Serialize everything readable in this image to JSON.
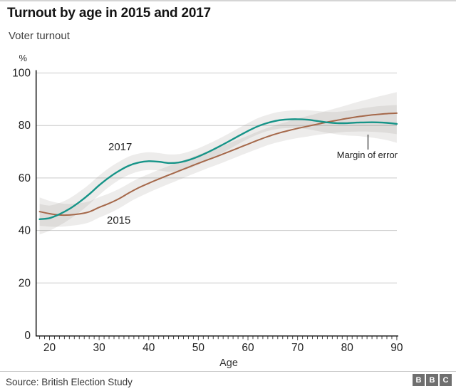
{
  "header": {
    "title": "Turnout by age in 2015 and 2017",
    "subtitle": "Voter turnout"
  },
  "chart_data": {
    "type": "line",
    "title": "Turnout by age in 2015 and 2017",
    "subtitle": "Voter turnout",
    "xlabel": "Age",
    "y_unit_label": "%",
    "xlim": [
      17.2,
      90.3
    ],
    "ylim": [
      0,
      100
    ],
    "x_ticks_labeled": [
      20,
      30,
      40,
      50,
      60,
      70,
      80,
      90
    ],
    "x_tick_minor_step": 1,
    "x_minor_range": [
      18,
      90
    ],
    "y_ticks": [
      0,
      20,
      40,
      60,
      80,
      100
    ],
    "grid": "horizontal",
    "legend_position": "inline-labels",
    "band_color": "#8f8880",
    "band_opacity": 0.16,
    "annotations": {
      "label_2017": "2017",
      "label_2015": "2015",
      "moe_label": "Margin of error"
    },
    "ages": [
      18,
      20,
      22,
      24,
      26,
      28,
      30,
      32,
      34,
      36,
      38,
      40,
      42,
      44,
      46,
      48,
      50,
      52,
      54,
      56,
      58,
      60,
      62,
      64,
      66,
      68,
      70,
      72,
      74,
      76,
      78,
      80,
      82,
      84,
      86,
      88,
      90
    ],
    "series": [
      {
        "name": "2015",
        "color": "#a5684a",
        "width": 2,
        "values": [
          47.2,
          46.4,
          45.9,
          45.9,
          46.3,
          47.1,
          48.8,
          50.3,
          52.1,
          54.3,
          56.3,
          58.0,
          59.6,
          61.1,
          62.6,
          64.1,
          65.6,
          67.0,
          68.4,
          69.9,
          71.4,
          72.9,
          74.4,
          75.8,
          77.0,
          78.0,
          78.9,
          79.7,
          80.5,
          81.3,
          82.0,
          82.7,
          83.3,
          83.8,
          84.2,
          84.5,
          84.7
        ],
        "moe": [
          5.4,
          4.9,
          4.5,
          4.2,
          4.1,
          4.0,
          3.9,
          3.8,
          3.7,
          3.6,
          3.6,
          3.5,
          3.5,
          3.4,
          3.4,
          3.3,
          3.3,
          3.2,
          3.2,
          3.2,
          3.2,
          3.2,
          3.3,
          3.3,
          3.4,
          3.5,
          3.7,
          3.9,
          4.1,
          4.4,
          4.7,
          5.1,
          5.6,
          6.1,
          6.7,
          7.3,
          8.0
        ]
      },
      {
        "name": "2017",
        "color": "#169488",
        "width": 2.4,
        "values": [
          44.3,
          44.7,
          46.2,
          48.2,
          50.8,
          53.8,
          57.2,
          60.2,
          62.7,
          64.7,
          65.9,
          66.4,
          66.2,
          65.7,
          65.9,
          66.8,
          68.2,
          69.9,
          71.8,
          73.8,
          75.9,
          77.9,
          79.7,
          81.0,
          81.9,
          82.3,
          82.4,
          82.2,
          81.7,
          81.2,
          80.9,
          80.9,
          81.1,
          81.2,
          81.2,
          81.0,
          80.6
        ],
        "moe": [
          5.8,
          4.8,
          4.3,
          4.0,
          3.9,
          3.8,
          3.7,
          3.6,
          3.5,
          3.5,
          3.4,
          3.4,
          3.3,
          3.3,
          3.2,
          3.2,
          3.1,
          3.1,
          3.0,
          3.0,
          3.0,
          3.0,
          3.1,
          3.1,
          3.2,
          3.3,
          3.4,
          3.6,
          3.8,
          4.0,
          4.3,
          4.7,
          5.1,
          5.6,
          6.1,
          6.6,
          7.2
        ]
      }
    ]
  },
  "footer": {
    "source": "Source: British Election Study",
    "logo": [
      "B",
      "B",
      "C"
    ]
  }
}
